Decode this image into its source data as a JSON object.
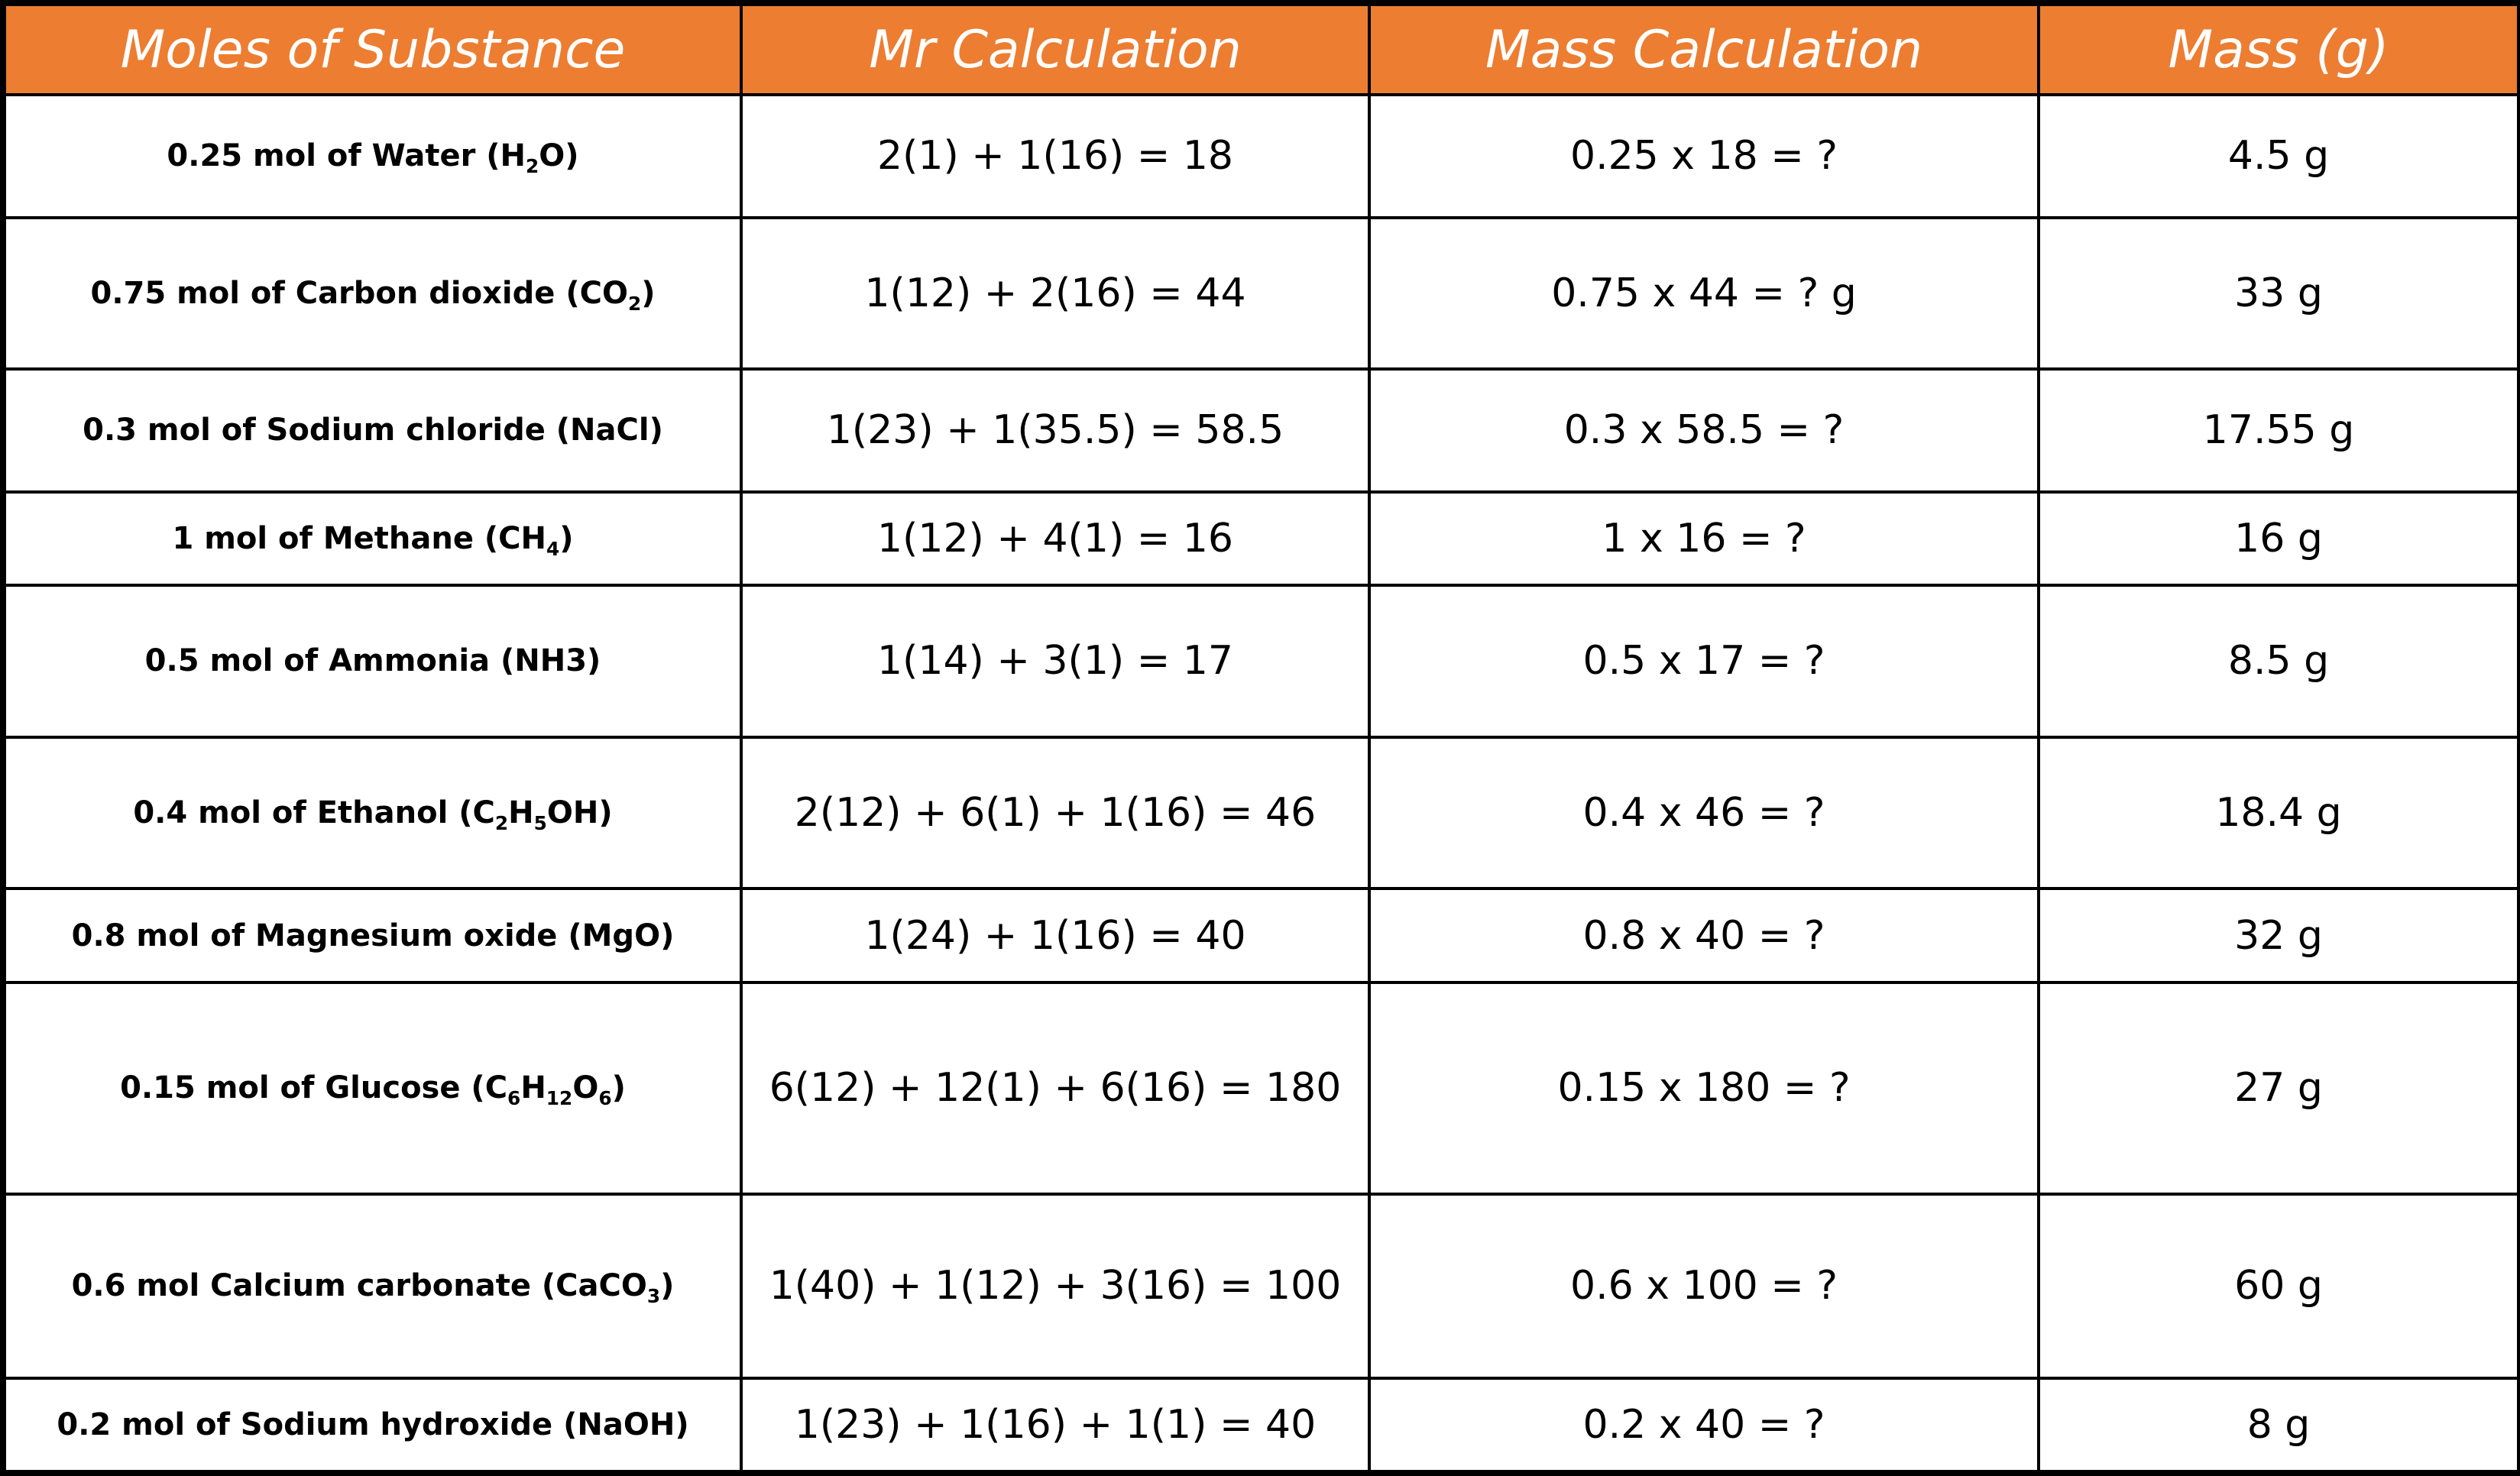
{
  "header": {
    "col1": "Moles of Substance",
    "col2": "Mr Calculation",
    "col3": "Mass Calculation",
    "col4": "Mass (g)"
  },
  "colors": {
    "header_bg": "#ed7d31",
    "header_text": "#ffffff",
    "grid_lines": "#000000"
  },
  "rows": [
    {
      "substance": {
        "prefix": "0.25 mol of Water (H",
        "sub1": "2",
        "mid1": "O)",
        "sub2": "",
        "mid2": "",
        "sub3": "",
        "mid3": ""
      },
      "mr": "2(1) + 1(16) = 18",
      "mass_calc": "0.25 x 18 = ?",
      "mass": "4.5 g"
    },
    {
      "substance": {
        "prefix": "0.75 mol of Carbon dioxide (CO",
        "sub1": "2",
        "mid1": ")",
        "sub2": "",
        "mid2": "",
        "sub3": "",
        "mid3": ""
      },
      "mr": "1(12) + 2(16) = 44",
      "mass_calc": "0.75 x 44 = ? g",
      "mass": "33 g"
    },
    {
      "substance": {
        "prefix": "0.3 mol of Sodium chloride (NaCl)",
        "sub1": "",
        "mid1": "",
        "sub2": "",
        "mid2": "",
        "sub3": "",
        "mid3": ""
      },
      "mr": "1(23) + 1(35.5) = 58.5",
      "mass_calc": "0.3 x 58.5 = ?",
      "mass": "17.55 g"
    },
    {
      "substance": {
        "prefix": "1 mol of Methane (CH",
        "sub1": "4",
        "mid1": ")",
        "sub2": "",
        "mid2": "",
        "sub3": "",
        "mid3": ""
      },
      "mr": "1(12) + 4(1) = 16",
      "mass_calc": "1 x 16 = ?",
      "mass": "16 g"
    },
    {
      "substance": {
        "prefix": "0.5 mol of Ammonia (NH3)",
        "sub1": "",
        "mid1": "",
        "sub2": "",
        "mid2": "",
        "sub3": "",
        "mid3": ""
      },
      "mr": "1(14) + 3(1) = 17",
      "mass_calc": "0.5 x 17 = ?",
      "mass": "8.5 g"
    },
    {
      "substance": {
        "prefix": "0.4 mol of Ethanol (C",
        "sub1": "2",
        "mid1": "H",
        "sub2": "5",
        "mid2": "OH)",
        "sub3": "",
        "mid3": ""
      },
      "mr": "2(12) + 6(1) + 1(16) = 46",
      "mass_calc": "0.4 x 46 = ?",
      "mass": "18.4 g"
    },
    {
      "substance": {
        "prefix": "0.8 mol of Magnesium oxide (MgO)",
        "sub1": "",
        "mid1": "",
        "sub2": "",
        "mid2": "",
        "sub3": "",
        "mid3": ""
      },
      "mr": "1(24) + 1(16) = 40",
      "mass_calc": "0.8 x 40 = ?",
      "mass": "32 g"
    },
    {
      "substance": {
        "prefix": "0.15 mol of Glucose (C",
        "sub1": "6",
        "mid1": "H",
        "sub2": "12",
        "mid2": "O",
        "sub3": "6",
        "mid3": ")"
      },
      "mr": "6(12) + 12(1) + 6(16) = 180",
      "mass_calc": "0.15 x 180 = ?",
      "mass": "27 g"
    },
    {
      "substance": {
        "prefix": "0.6 mol Calcium carbonate (CaCO",
        "sub1": "3",
        "mid1": ")",
        "sub2": "",
        "mid2": "",
        "sub3": "",
        "mid3": ""
      },
      "mr": "1(40) + 1(12) + 3(16) = 100",
      "mass_calc": "0.6 x 100 = ?",
      "mass": "60 g"
    },
    {
      "substance": {
        "prefix": "0.2 mol of Sodium hydroxide (NaOH)",
        "sub1": "",
        "mid1": "",
        "sub2": "",
        "mid2": "",
        "sub3": "",
        "mid3": ""
      },
      "mr": "1(23) + 1(16) + 1(1) = 40",
      "mass_calc": "0.2 x 40 = ?",
      "mass": "8 g"
    }
  ]
}
